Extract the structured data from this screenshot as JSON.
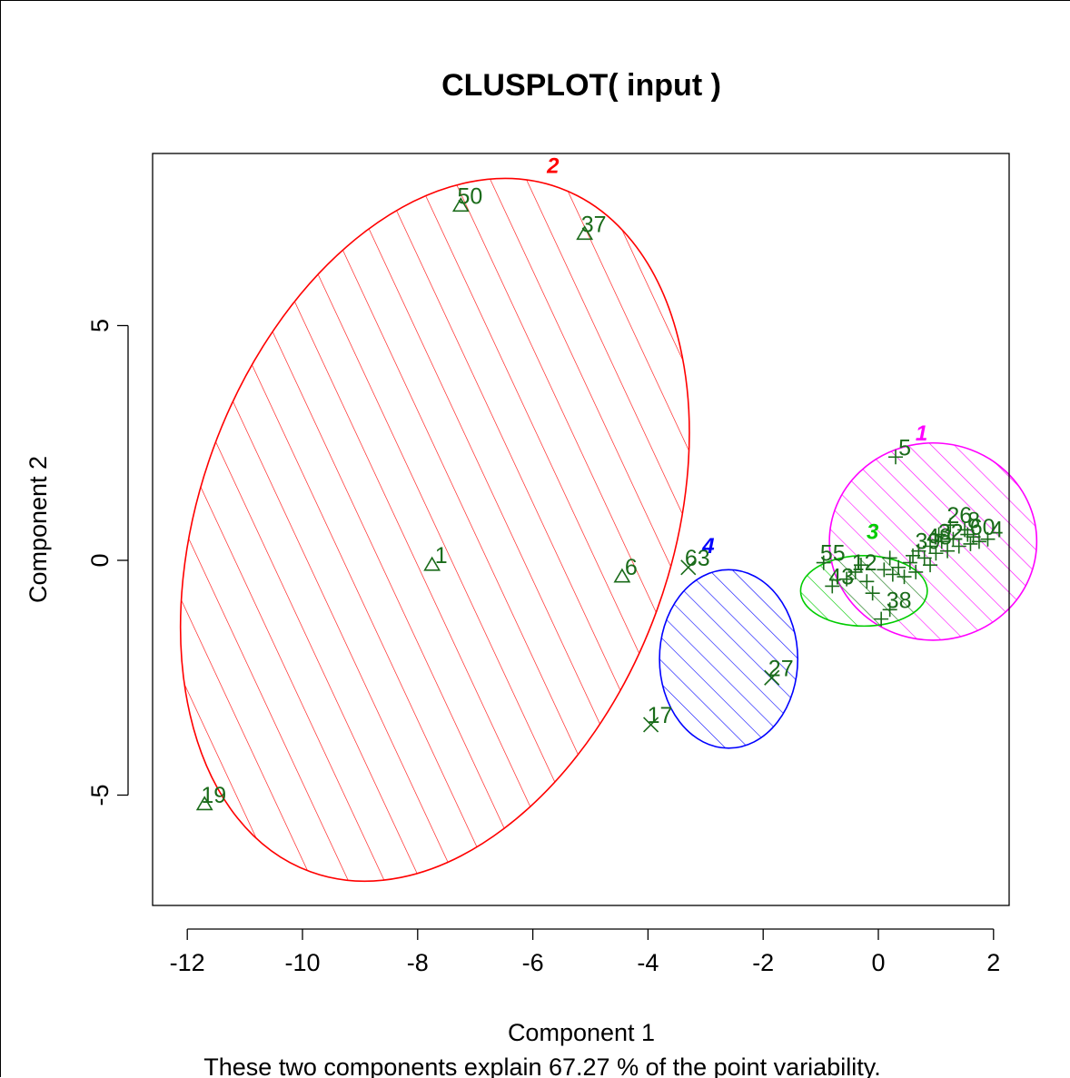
{
  "chart_data": {
    "type": "scatter",
    "title": "CLUSPLOT( input )",
    "xlabel": "Component 1",
    "ylabel": "Component 2",
    "subtitle": "These two components explain 67.27 % of the point variability.",
    "xlim": [
      -12.6,
      2.3
    ],
    "ylim": [
      -7.5,
      8.6
    ],
    "xticks": [
      -12,
      -10,
      -8,
      -6,
      -4,
      -2,
      0,
      2
    ],
    "yticks": [
      -5,
      0,
      5
    ],
    "grid": false,
    "point_color": "#1a6b1a",
    "clusters": [
      {
        "id": "1",
        "color": "#ff00ff",
        "label_x": 0.75,
        "label_y": 2.55,
        "ellipse": {
          "cx": 0.95,
          "cy": 0.4,
          "rx": 1.8,
          "ry": 2.1,
          "angle": 0
        },
        "marker": "cross",
        "points": [
          {
            "x": 0.3,
            "y": 2.2,
            "label": "5"
          },
          {
            "x": 1.25,
            "y": 0.75,
            "label": "26"
          },
          {
            "x": 1.5,
            "y": 0.65,
            "label": "8"
          },
          {
            "x": 1.9,
            "y": 0.45,
            "label": "4"
          },
          {
            "x": 1.65,
            "y": 0.5,
            "label": "60"
          },
          {
            "x": 1.1,
            "y": 0.4,
            "label": "32"
          },
          {
            "x": 0.9,
            "y": 0.3,
            "label": "48"
          },
          {
            "x": 0.7,
            "y": 0.2,
            "label": "39"
          }
        ]
      },
      {
        "id": "2",
        "color": "#ff0000",
        "label_x": -5.65,
        "label_y": 8.25,
        "ellipse": {
          "cx": -7.7,
          "cy": 0.65,
          "rx": 4.1,
          "ry": 7.75,
          "angle": 20
        },
        "marker": "triangle",
        "points": [
          {
            "x": -7.25,
            "y": 7.55,
            "label": "50"
          },
          {
            "x": -5.1,
            "y": 6.95,
            "label": "37"
          },
          {
            "x": -7.75,
            "y": -0.1,
            "label": "1"
          },
          {
            "x": -4.45,
            "y": -0.35,
            "label": "6"
          },
          {
            "x": -11.7,
            "y": -5.2,
            "label": "19"
          }
        ]
      },
      {
        "id": "3",
        "color": "#00cc00",
        "label_x": -0.1,
        "label_y": 0.45,
        "ellipse": {
          "cx": -0.25,
          "cy": -0.65,
          "rx": 1.1,
          "ry": 0.75,
          "angle": 0
        },
        "marker": "plus",
        "points": [
          {
            "x": -0.95,
            "y": -0.05,
            "label": "55"
          },
          {
            "x": -0.8,
            "y": -0.55,
            "label": "43"
          },
          {
            "x": -0.4,
            "y": -0.25,
            "label": "12"
          },
          {
            "x": 0.2,
            "y": -1.05,
            "label": "38"
          },
          {
            "x": 0.05,
            "y": -1.25,
            "label": ""
          },
          {
            "x": -0.1,
            "y": -0.7,
            "label": ""
          },
          {
            "x": 0.25,
            "y": -0.3,
            "label": ""
          }
        ]
      },
      {
        "id": "4",
        "color": "#0000ff",
        "label_x": -2.95,
        "label_y": 0.15,
        "ellipse": {
          "cx": -2.6,
          "cy": -2.1,
          "rx": 1.2,
          "ry": 1.9,
          "angle": 0
        },
        "marker": "x",
        "points": [
          {
            "x": -3.3,
            "y": -0.15,
            "label": "63"
          },
          {
            "x": -1.85,
            "y": -2.5,
            "label": "27"
          },
          {
            "x": -3.95,
            "y": -3.5,
            "label": "17"
          }
        ]
      }
    ]
  }
}
